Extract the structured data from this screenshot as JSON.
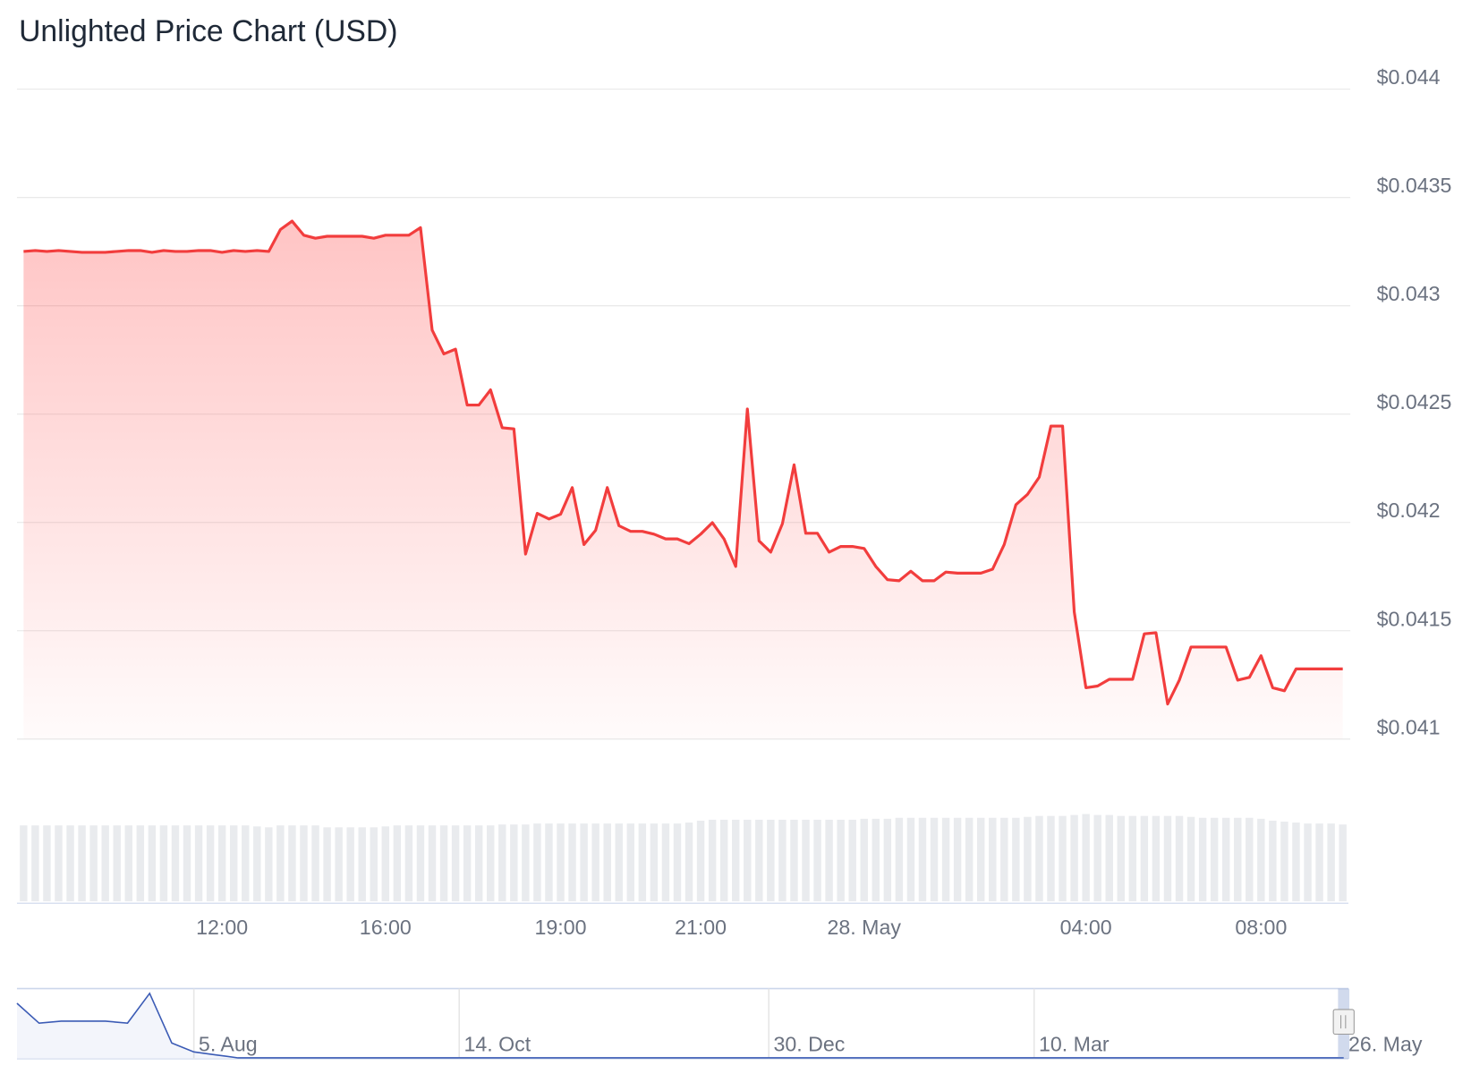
{
  "chart_data": [
    {
      "type": "area",
      "title": "Unlighted Price Chart (USD)",
      "color": "#f23d3d",
      "ylim": [
        0.041,
        0.044
      ],
      "yticks": [
        {
          "value": 0.041,
          "label": "$0.041"
        },
        {
          "value": 0.0415,
          "label": "$0.0415"
        },
        {
          "value": 0.042,
          "label": "$0.042"
        },
        {
          "value": 0.0425,
          "label": "$0.0425"
        },
        {
          "value": 0.043,
          "label": "$0.043"
        },
        {
          "value": 0.0435,
          "label": "$0.0435"
        },
        {
          "value": 0.044,
          "label": "$0.044"
        }
      ],
      "grid": true,
      "categories": [
        null,
        null,
        null,
        null,
        null,
        null,
        null,
        null,
        null,
        null,
        null,
        null,
        null,
        null,
        null,
        null,
        null,
        "12:00",
        null,
        null,
        null,
        null,
        null,
        null,
        null,
        null,
        null,
        null,
        null,
        null,
        null,
        "16:00",
        null,
        null,
        null,
        null,
        null,
        null,
        null,
        null,
        null,
        null,
        null,
        null,
        null,
        null,
        "19:00",
        null,
        null,
        null,
        null,
        null,
        null,
        null,
        null,
        null,
        null,
        null,
        "21:00",
        null,
        null,
        null,
        null,
        null,
        null,
        null,
        null,
        null,
        null,
        null,
        null,
        null,
        "28. May",
        null,
        null,
        null,
        null,
        null,
        null,
        null,
        null,
        null,
        null,
        null,
        null,
        null,
        null,
        null,
        null,
        null,
        null,
        "04:00",
        null,
        null,
        null,
        null,
        null,
        null,
        null,
        null,
        null,
        null,
        null,
        null,
        null,
        null,
        "08:00",
        null,
        null,
        null,
        null,
        null,
        null,
        null
      ],
      "values": [
        0.043251,
        0.043255,
        0.043251,
        0.043255,
        0.043251,
        0.043247,
        0.043247,
        0.043247,
        0.043251,
        0.043255,
        0.043255,
        0.043247,
        0.043255,
        0.043251,
        0.043251,
        0.043255,
        0.043255,
        0.043247,
        0.043255,
        0.043251,
        0.043255,
        0.043251,
        0.043352,
        0.043391,
        0.043326,
        0.043312,
        0.043321,
        0.043321,
        0.043321,
        0.043321,
        0.043312,
        0.043326,
        0.043326,
        0.043326,
        0.043361,
        0.042888,
        0.042778,
        0.0428,
        0.042542,
        0.042542,
        0.042612,
        0.042437,
        0.042432,
        0.041854,
        0.042042,
        0.042016,
        0.042038,
        0.042161,
        0.041898,
        0.041964,
        0.042161,
        0.041985,
        0.041959,
        0.041959,
        0.041946,
        0.041924,
        0.041924,
        0.041902,
        0.041946,
        0.041999,
        0.041924,
        0.041797,
        0.042524,
        0.041915,
        0.041863,
        0.041994,
        0.042266,
        0.04195,
        0.04195,
        0.041863,
        0.041889,
        0.041889,
        0.04188,
        0.041797,
        0.041736,
        0.041731,
        0.041775,
        0.041731,
        0.041731,
        0.041771,
        0.041766,
        0.041766,
        0.041766,
        0.041784,
        0.041898,
        0.042082,
        0.04213,
        0.042209,
        0.042445,
        0.042445,
        0.041587,
        0.041237,
        0.041245,
        0.041276,
        0.041276,
        0.041276,
        0.041486,
        0.041491,
        0.041162,
        0.041272,
        0.041425,
        0.041425,
        0.041425,
        0.041425,
        0.041272,
        0.041285,
        0.041385,
        0.041237,
        0.041223,
        0.041324,
        0.041324,
        0.041324,
        0.041324,
        0.041324
      ]
    },
    {
      "type": "bar",
      "color": "#e9ebee",
      "values": [
        80,
        80,
        80,
        80,
        80,
        80,
        80,
        80,
        80,
        80,
        80,
        80,
        80,
        80,
        80,
        80,
        80,
        80,
        80,
        80,
        79,
        78,
        80,
        80,
        80,
        80,
        78,
        78,
        78,
        78,
        78,
        79,
        80,
        80,
        80,
        80,
        80,
        80,
        80,
        80,
        80,
        81,
        81,
        81,
        82,
        82,
        82,
        82,
        82,
        82,
        82,
        82,
        82,
        82,
        82,
        82,
        82,
        83,
        85,
        86,
        86,
        86,
        86,
        86,
        86,
        86,
        86,
        86,
        86,
        86,
        86,
        86,
        87,
        87,
        87,
        88,
        88,
        88,
        88,
        88,
        88,
        88,
        88,
        88,
        88,
        88,
        89,
        90,
        90,
        90,
        91,
        92,
        91,
        91,
        90,
        90,
        90,
        90,
        90,
        90,
        89,
        88,
        88,
        88,
        88,
        88,
        87,
        85,
        84,
        83,
        82,
        82,
        82,
        81
      ]
    },
    {
      "type": "line",
      "color": "#3b5bb5",
      "categories": [
        null,
        null,
        null,
        null,
        null,
        null,
        null,
        null,
        "5. Aug",
        null,
        null,
        null,
        null,
        null,
        null,
        null,
        null,
        null,
        null,
        null,
        "14. Oct",
        null,
        null,
        null,
        null,
        null,
        null,
        null,
        null,
        null,
        null,
        null,
        null,
        null,
        "30. Dec",
        null,
        null,
        null,
        null,
        null,
        null,
        null,
        null,
        null,
        null,
        null,
        "10. Mar",
        null,
        null,
        null,
        null,
        null,
        null,
        null,
        null,
        null,
        null,
        null,
        null,
        null,
        "26. May"
      ],
      "values": [
        0.2885,
        0.1985,
        0.2075,
        0.2075,
        0.2075,
        0.1985,
        0.3335,
        0.1085,
        0.068,
        0.0545,
        0.041,
        0.041,
        0.041,
        0.041,
        0.041,
        0.041,
        0.041,
        0.041,
        0.041,
        0.041,
        0.041,
        0.041,
        0.041,
        0.041,
        0.041,
        0.041,
        0.041,
        0.041,
        0.041,
        0.041,
        0.041,
        0.041,
        0.041,
        0.041,
        0.041,
        0.041,
        0.041,
        0.041,
        0.041,
        0.041,
        0.041,
        0.041,
        0.041,
        0.041,
        0.041,
        0.041,
        0.041,
        0.041,
        0.041,
        0.041,
        0.041,
        0.041,
        0.041,
        0.041,
        0.041,
        0.041,
        0.041,
        0.041,
        0.041,
        0.041,
        0.041
      ]
    }
  ]
}
